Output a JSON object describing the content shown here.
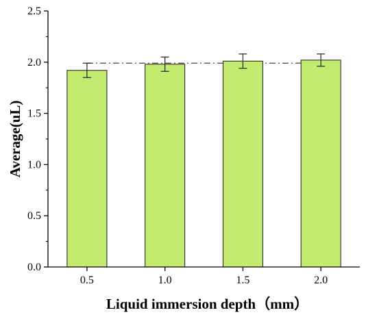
{
  "chart_data": {
    "type": "bar",
    "categories": [
      "0.5",
      "1.0",
      "1.5",
      "2.0"
    ],
    "values": [
      1.92,
      1.98,
      2.01,
      2.02
    ],
    "errors": [
      0.07,
      0.07,
      0.07,
      0.06
    ],
    "reference_line": 1.99,
    "title": "",
    "xlabel": "Liquid immersion depth（mm）",
    "ylabel": "Average(uL)",
    "ylim": [
      0,
      2.5
    ],
    "yticks": [
      "0.0",
      "0.5",
      "1.0",
      "1.5",
      "2.0",
      "2.5"
    ],
    "grid": false,
    "legend": "none",
    "colors": {
      "bar_fill": "#c2eb6f",
      "bar_stroke": "#1a1a1a",
      "reference_line": "#555555",
      "axis": "#000000"
    }
  }
}
